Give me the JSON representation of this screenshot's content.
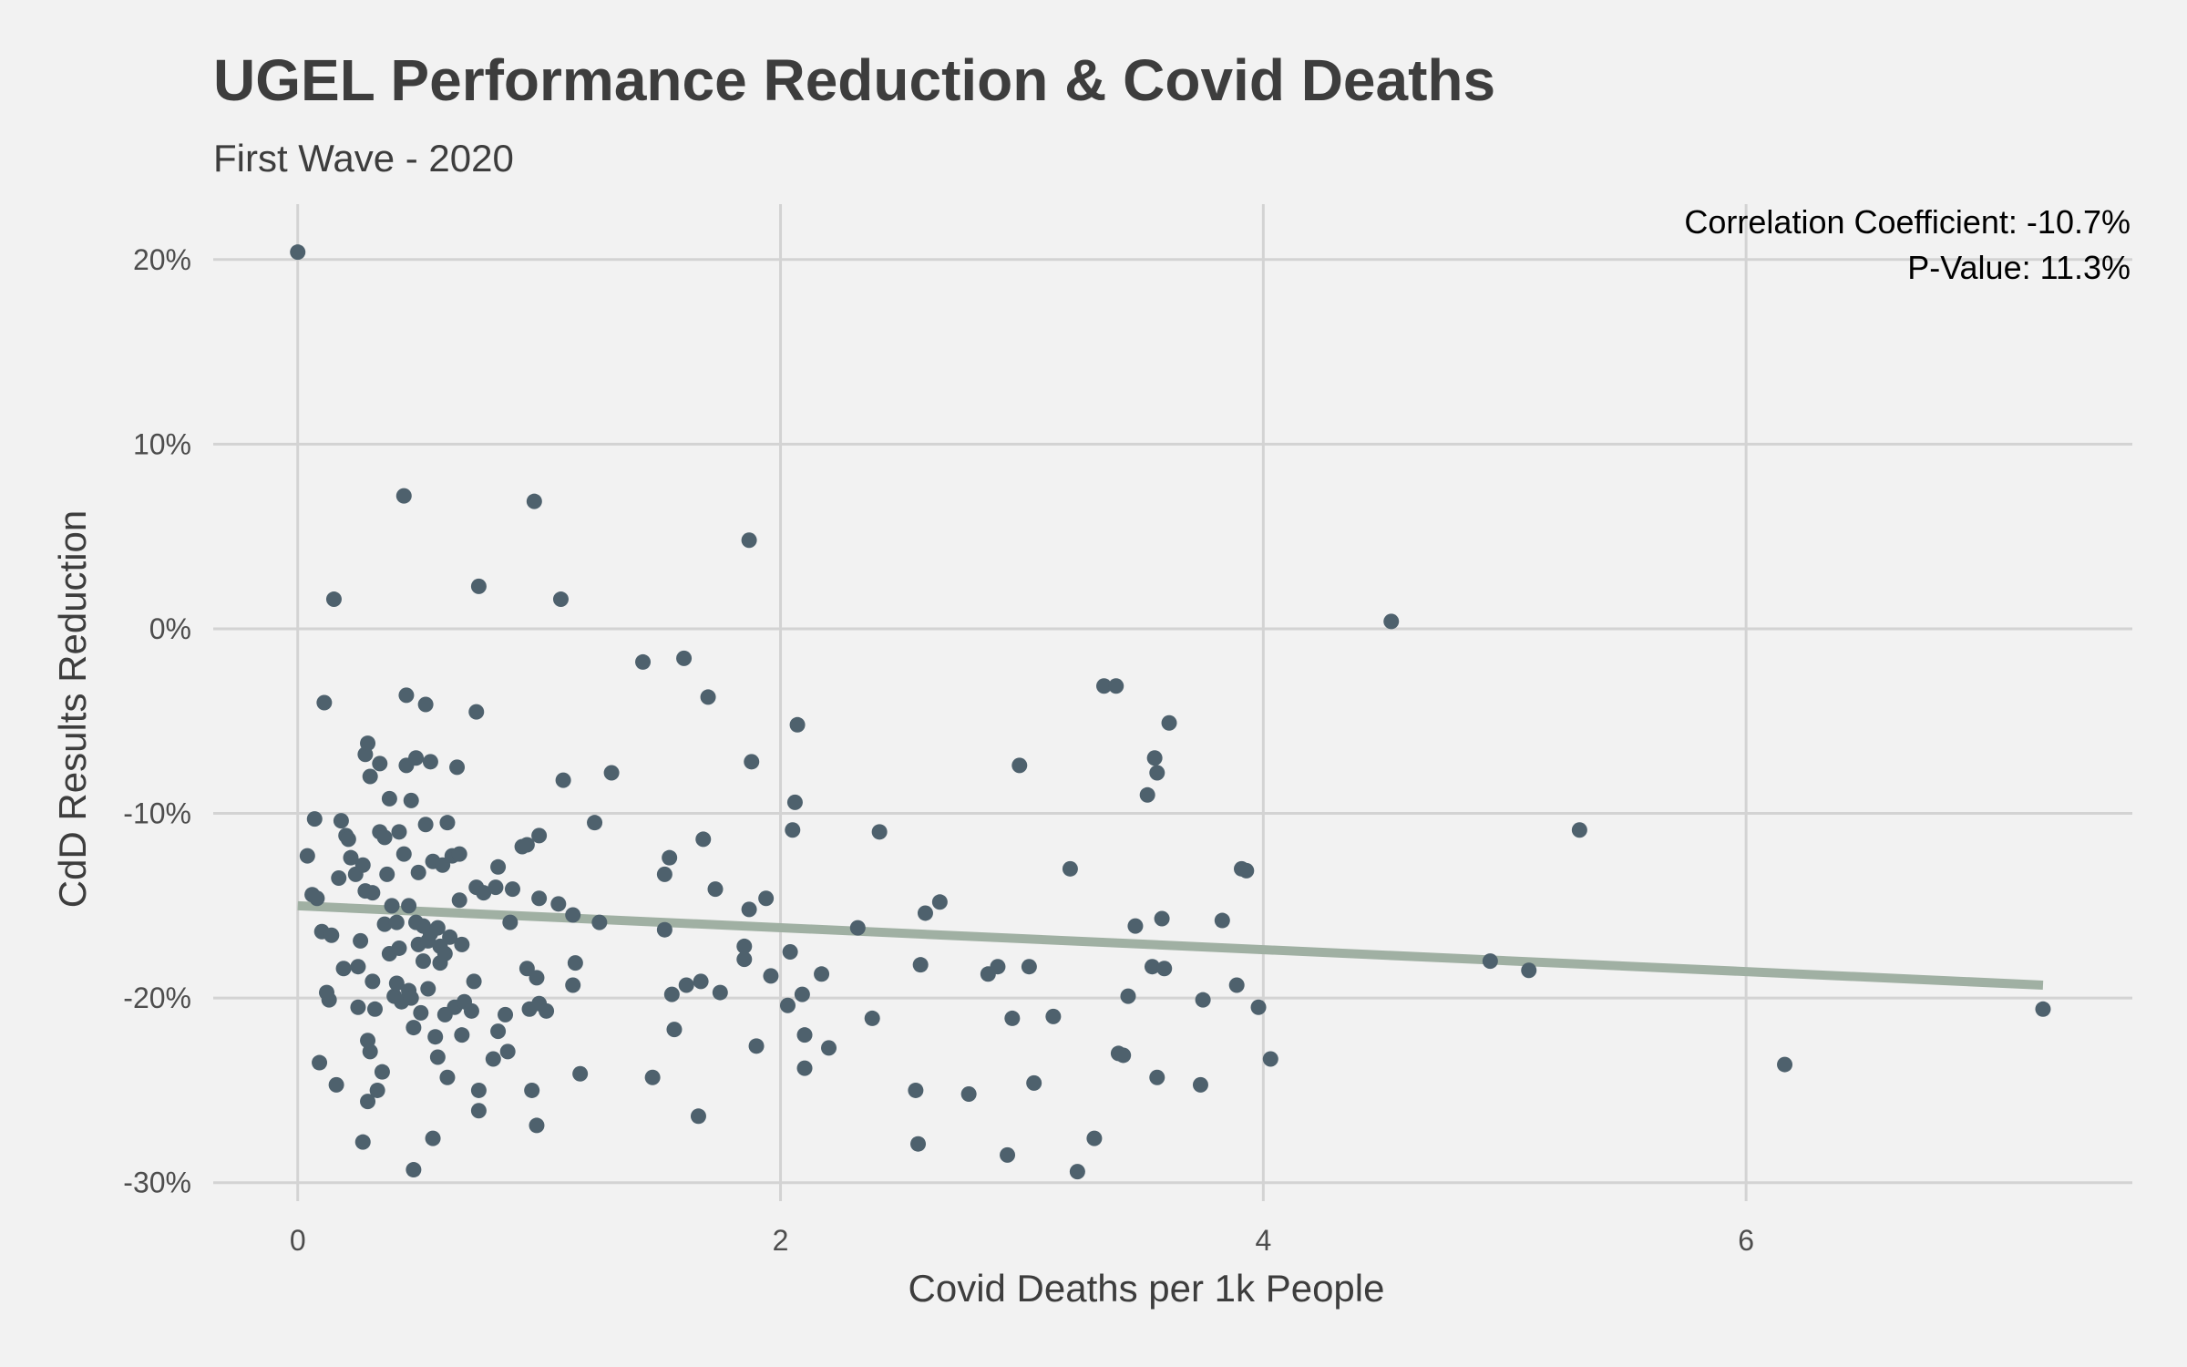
{
  "chart_data": {
    "type": "scatter",
    "title": "UGEL Performance Reduction & Covid Deaths",
    "subtitle": "First Wave - 2020",
    "xlabel": "Covid Deaths per 1k People",
    "ylabel": "CdD Results Reduction",
    "xlim": [
      -0.35,
      7.6
    ],
    "ylim": [
      -31,
      23
    ],
    "x_ticks": [
      0,
      2,
      4,
      6
    ],
    "x_tick_labels": [
      "0",
      "2",
      "4",
      "6"
    ],
    "y_ticks": [
      20,
      10,
      0,
      -10,
      -20,
      -30
    ],
    "y_tick_labels": [
      "20%",
      "10%",
      "0%",
      "-10%",
      "-20%",
      "-30%"
    ],
    "grid": true,
    "annotations": [
      "Correlation Coefficient: -10.7%",
      "P-Value: 11.3%"
    ],
    "regression_line": {
      "x": [
        0,
        7.23
      ],
      "y": [
        -15.0,
        -19.3
      ]
    },
    "points": [
      [
        0.0,
        20.4
      ],
      [
        0.04,
        -12.3
      ],
      [
        0.06,
        -14.4
      ],
      [
        0.07,
        -10.3
      ],
      [
        0.08,
        -14.6
      ],
      [
        0.09,
        -23.5
      ],
      [
        0.1,
        -16.4
      ],
      [
        0.11,
        -4.0
      ],
      [
        0.12,
        -19.7
      ],
      [
        0.13,
        -20.1
      ],
      [
        0.14,
        -16.6
      ],
      [
        0.15,
        1.6
      ],
      [
        0.16,
        -24.7
      ],
      [
        0.17,
        -13.5
      ],
      [
        0.18,
        -10.4
      ],
      [
        0.19,
        -18.4
      ],
      [
        0.2,
        -11.2
      ],
      [
        0.21,
        -11.4
      ],
      [
        0.22,
        -12.4
      ],
      [
        0.24,
        -13.3
      ],
      [
        0.25,
        -20.5
      ],
      [
        0.25,
        -18.3
      ],
      [
        0.26,
        -16.9
      ],
      [
        0.27,
        -27.8
      ],
      [
        0.27,
        -12.8
      ],
      [
        0.28,
        -6.8
      ],
      [
        0.28,
        -14.2
      ],
      [
        0.29,
        -22.3
      ],
      [
        0.29,
        -25.6
      ],
      [
        0.29,
        -6.2
      ],
      [
        0.3,
        -8.0
      ],
      [
        0.3,
        -22.9
      ],
      [
        0.31,
        -19.1
      ],
      [
        0.31,
        -14.3
      ],
      [
        0.32,
        -20.6
      ],
      [
        0.33,
        -25.0
      ],
      [
        0.34,
        -7.3
      ],
      [
        0.34,
        -11.0
      ],
      [
        0.35,
        -24.0
      ],
      [
        0.36,
        -11.3
      ],
      [
        0.36,
        -16.0
      ],
      [
        0.37,
        -13.3
      ],
      [
        0.38,
        -9.2
      ],
      [
        0.38,
        -17.6
      ],
      [
        0.39,
        -15.0
      ],
      [
        0.4,
        -19.9
      ],
      [
        0.41,
        -19.2
      ],
      [
        0.41,
        -15.9
      ],
      [
        0.42,
        -17.3
      ],
      [
        0.42,
        -11.0
      ],
      [
        0.43,
        -20.2
      ],
      [
        0.44,
        7.2
      ],
      [
        0.44,
        -12.2
      ],
      [
        0.45,
        -3.6
      ],
      [
        0.45,
        -7.4
      ],
      [
        0.46,
        -19.6
      ],
      [
        0.46,
        -15.0
      ],
      [
        0.47,
        -9.3
      ],
      [
        0.47,
        -20.0
      ],
      [
        0.48,
        -29.3
      ],
      [
        0.48,
        -21.6
      ],
      [
        0.49,
        -7.0
      ],
      [
        0.49,
        -15.9
      ],
      [
        0.5,
        -13.2
      ],
      [
        0.5,
        -17.1
      ],
      [
        0.51,
        -20.8
      ],
      [
        0.52,
        -16.1
      ],
      [
        0.52,
        -18.0
      ],
      [
        0.53,
        -10.6
      ],
      [
        0.53,
        -4.1
      ],
      [
        0.54,
        -16.9
      ],
      [
        0.54,
        -19.5
      ],
      [
        0.55,
        -7.2
      ],
      [
        0.55,
        -16.5
      ],
      [
        0.56,
        -27.6
      ],
      [
        0.56,
        -12.6
      ],
      [
        0.57,
        -22.1
      ],
      [
        0.58,
        -23.2
      ],
      [
        0.58,
        -16.2
      ],
      [
        0.59,
        -17.2
      ],
      [
        0.59,
        -18.1
      ],
      [
        0.6,
        -12.8
      ],
      [
        0.61,
        -17.6
      ],
      [
        0.61,
        -20.9
      ],
      [
        0.62,
        -24.3
      ],
      [
        0.62,
        -10.5
      ],
      [
        0.63,
        -16.7
      ],
      [
        0.64,
        -12.3
      ],
      [
        0.65,
        -20.5
      ],
      [
        0.66,
        -7.5
      ],
      [
        0.67,
        -12.2
      ],
      [
        0.67,
        -14.7
      ],
      [
        0.68,
        -22.0
      ],
      [
        0.68,
        -17.1
      ],
      [
        0.69,
        -20.2
      ],
      [
        0.72,
        -20.7
      ],
      [
        0.73,
        -19.1
      ],
      [
        0.74,
        -14.0
      ],
      [
        0.74,
        -4.5
      ],
      [
        0.75,
        2.3
      ],
      [
        0.75,
        -26.1
      ],
      [
        0.75,
        -25.0
      ],
      [
        0.77,
        -14.3
      ],
      [
        0.81,
        -23.3
      ],
      [
        0.82,
        -14.0
      ],
      [
        0.83,
        -12.9
      ],
      [
        0.83,
        -21.8
      ],
      [
        0.86,
        -20.9
      ],
      [
        0.87,
        -22.9
      ],
      [
        0.88,
        -15.9
      ],
      [
        0.89,
        -14.1
      ],
      [
        0.93,
        -11.8
      ],
      [
        0.95,
        -11.7
      ],
      [
        0.95,
        -18.4
      ],
      [
        0.96,
        -20.6
      ],
      [
        0.97,
        -25.0
      ],
      [
        0.98,
        6.9
      ],
      [
        0.99,
        -26.9
      ],
      [
        0.99,
        -18.9
      ],
      [
        1.0,
        -11.2
      ],
      [
        1.0,
        -20.3
      ],
      [
        1.0,
        -14.6
      ],
      [
        1.03,
        -20.7
      ],
      [
        1.08,
        -14.9
      ],
      [
        1.09,
        1.6
      ],
      [
        1.1,
        -8.2
      ],
      [
        1.14,
        -15.5
      ],
      [
        1.14,
        -19.3
      ],
      [
        1.15,
        -18.1
      ],
      [
        1.17,
        -24.1
      ],
      [
        1.23,
        -10.5
      ],
      [
        1.25,
        -15.9
      ],
      [
        1.3,
        -7.8
      ],
      [
        1.43,
        -1.8
      ],
      [
        1.47,
        -24.3
      ],
      [
        1.52,
        -13.3
      ],
      [
        1.52,
        -16.3
      ],
      [
        1.54,
        -12.4
      ],
      [
        1.55,
        -19.8
      ],
      [
        1.56,
        -21.7
      ],
      [
        1.6,
        -1.6
      ],
      [
        1.61,
        -19.3
      ],
      [
        1.66,
        -26.4
      ],
      [
        1.67,
        -19.1
      ],
      [
        1.68,
        -11.4
      ],
      [
        1.7,
        -3.7
      ],
      [
        1.73,
        -14.1
      ],
      [
        1.75,
        -19.7
      ],
      [
        1.85,
        -17.2
      ],
      [
        1.85,
        -17.9
      ],
      [
        1.87,
        4.8
      ],
      [
        1.87,
        -15.2
      ],
      [
        1.88,
        -7.2
      ],
      [
        1.9,
        -22.6
      ],
      [
        1.94,
        -14.6
      ],
      [
        1.96,
        -18.8
      ],
      [
        2.03,
        -20.4
      ],
      [
        2.04,
        -17.5
      ],
      [
        2.05,
        -10.9
      ],
      [
        2.06,
        -9.4
      ],
      [
        2.07,
        -5.2
      ],
      [
        2.09,
        -19.8
      ],
      [
        2.1,
        -22.0
      ],
      [
        2.1,
        -23.8
      ],
      [
        2.17,
        -18.7
      ],
      [
        2.2,
        -22.7
      ],
      [
        2.32,
        -16.2
      ],
      [
        2.38,
        -21.1
      ],
      [
        2.41,
        -11.0
      ],
      [
        2.56,
        -25.0
      ],
      [
        2.57,
        -27.9
      ],
      [
        2.58,
        -18.2
      ],
      [
        2.6,
        -15.4
      ],
      [
        2.66,
        -14.8
      ],
      [
        2.78,
        -25.2
      ],
      [
        2.86,
        -18.7
      ],
      [
        2.9,
        -18.3
      ],
      [
        2.94,
        -28.5
      ],
      [
        2.96,
        -21.1
      ],
      [
        2.99,
        -7.4
      ],
      [
        3.03,
        -18.3
      ],
      [
        3.05,
        -24.6
      ],
      [
        3.13,
        -21.0
      ],
      [
        3.2,
        -13.0
      ],
      [
        3.23,
        -29.4
      ],
      [
        3.3,
        -27.6
      ],
      [
        3.34,
        -3.1
      ],
      [
        3.39,
        -3.1
      ],
      [
        3.4,
        -23.0
      ],
      [
        3.42,
        -23.1
      ],
      [
        3.44,
        -19.9
      ],
      [
        3.47,
        -16.1
      ],
      [
        3.52,
        -9.0
      ],
      [
        3.54,
        -18.3
      ],
      [
        3.55,
        -7.0
      ],
      [
        3.56,
        -7.8
      ],
      [
        3.56,
        -24.3
      ],
      [
        3.58,
        -15.7
      ],
      [
        3.59,
        -18.4
      ],
      [
        3.61,
        -5.1
      ],
      [
        3.74,
        -24.7
      ],
      [
        3.75,
        -20.1
      ],
      [
        3.83,
        -15.8
      ],
      [
        3.89,
        -19.3
      ],
      [
        3.91,
        -13.0
      ],
      [
        3.93,
        -13.1
      ],
      [
        3.98,
        -20.5
      ],
      [
        4.03,
        -23.3
      ],
      [
        4.53,
        0.4
      ],
      [
        4.94,
        -18.0
      ],
      [
        5.1,
        -18.5
      ],
      [
        5.31,
        -10.9
      ],
      [
        6.16,
        -23.6
      ],
      [
        7.23,
        -20.6
      ]
    ]
  }
}
